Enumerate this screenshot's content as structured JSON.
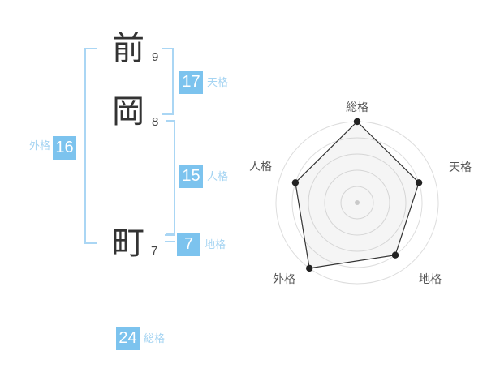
{
  "panel": {
    "title": "name-fortune-analysis"
  },
  "name": {
    "characters": [
      {
        "char": "前",
        "strokes": 9
      },
      {
        "char": "岡",
        "strokes": 8
      },
      {
        "char": "町",
        "strokes": 7
      }
    ],
    "scores": {
      "tenkaku": {
        "label": "天格",
        "value": 17
      },
      "jinkaku": {
        "label": "人格",
        "value": 15
      },
      "chikaku": {
        "label": "地格",
        "value": 7
      },
      "gaikaku": {
        "label": "外格",
        "value": 16
      },
      "soukaku": {
        "label": "総格",
        "value": 24
      }
    }
  },
  "chart_data": {
    "type": "radar",
    "categories": [
      "総格",
      "天格",
      "地格",
      "外格",
      "人格"
    ],
    "values": [
      5,
      4,
      4,
      5,
      4
    ],
    "max": 5,
    "rings": 5,
    "start_angle_deg": -90,
    "direction": "clockwise",
    "grid": "concentric-circles",
    "legend": "none",
    "title": ""
  },
  "colors": {
    "badge_blue": "#7cc3ee",
    "bracket_blue": "#aad6f4",
    "score_label_blue": "#a5d4f2",
    "kanji_text": "#333333",
    "chart_grid": "#dddddd",
    "chart_line": "#333333",
    "chart_dot": "#222222",
    "chart_center_dot": "#c9c9c9",
    "chart_fill": "rgba(130,130,130,0.08)"
  }
}
